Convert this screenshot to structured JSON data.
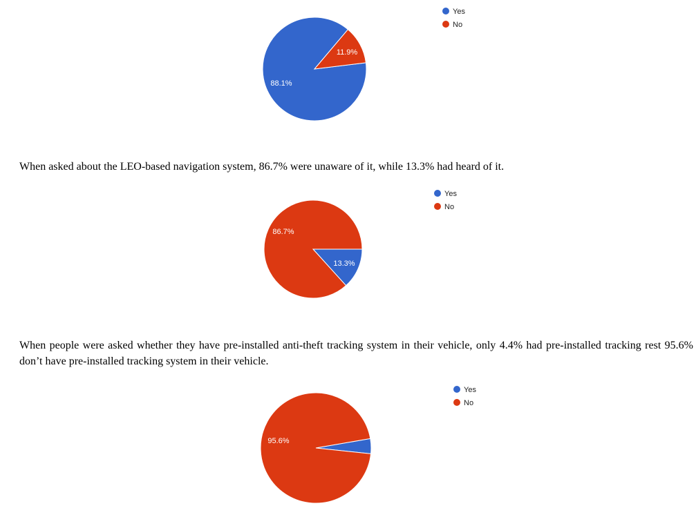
{
  "paragraphs": [
    "When asked about the LEO-based navigation system, 86.7% were unaware of it, while 13.3% had heard of it.",
    "When people were asked whether they have pre-installed anti-theft tracking system in their vehicle, only 4.4% had pre-installed tracking rest 95.6% don’t have pre-installed tracking system in their vehicle."
  ],
  "colors": {
    "yes": "#3366cc",
    "no": "#dc3912"
  },
  "chart_data": [
    {
      "type": "pie",
      "categories": [
        "Yes",
        "No"
      ],
      "values": [
        88.1,
        11.9
      ],
      "labels": [
        "88.1%",
        "11.9%"
      ],
      "legend": [
        "Yes",
        "No"
      ],
      "legend_position": "top-right"
    },
    {
      "type": "pie",
      "categories": [
        "Yes",
        "No"
      ],
      "values": [
        13.3,
        86.7
      ],
      "labels": [
        "13.3%",
        "86.7%"
      ],
      "legend": [
        "Yes",
        "No"
      ],
      "legend_position": "top-right"
    },
    {
      "type": "pie",
      "categories": [
        "Yes",
        "No"
      ],
      "values": [
        4.4,
        95.6
      ],
      "labels": [
        "",
        "95.6%"
      ],
      "legend": [
        "Yes",
        "No"
      ],
      "legend_position": "top-right"
    }
  ]
}
